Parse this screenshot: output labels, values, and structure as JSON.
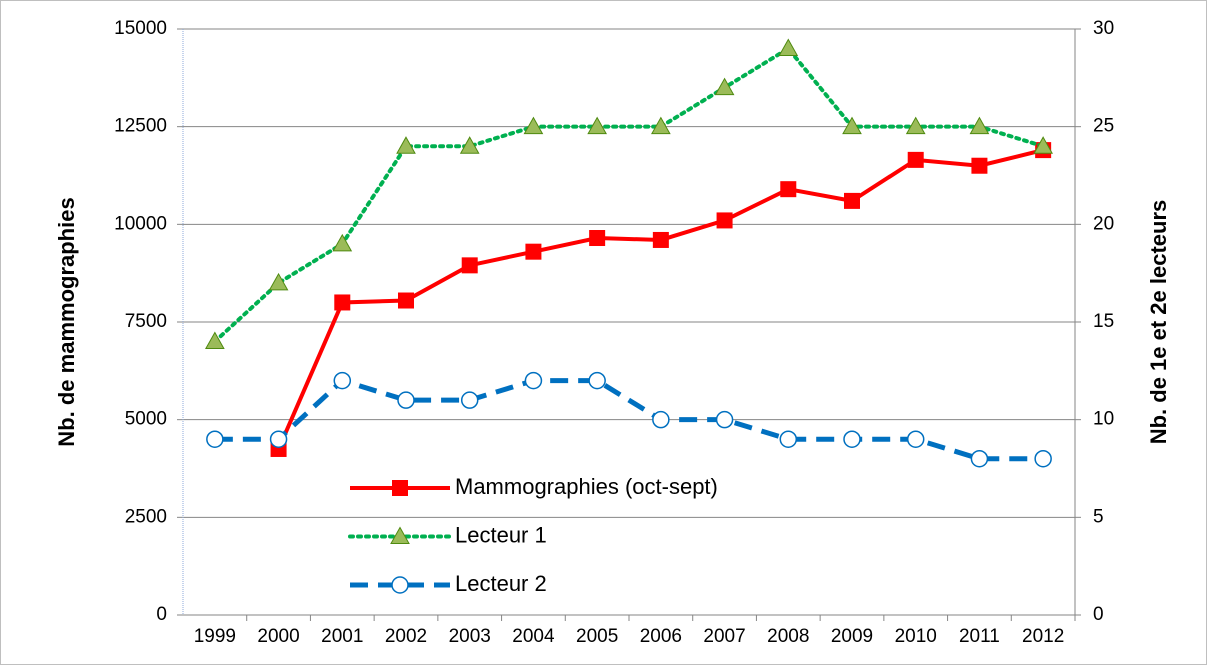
{
  "chart_data": {
    "type": "line",
    "y_label": "Nb. de mammographies",
    "y2_label": "Nb. de 1e et 2e lecteurs",
    "categories": [
      "1999",
      "2000",
      "2001",
      "2002",
      "2003",
      "2004",
      "2005",
      "2006",
      "2007",
      "2008",
      "2009",
      "2010",
      "2011",
      "2012"
    ],
    "series": [
      {
        "name": "Mammographies (oct-sept)",
        "color": "#ff0000",
        "marker": "square",
        "style": "solid",
        "values": [
          null,
          4250,
          8000,
          8050,
          8950,
          9300,
          9650,
          9600,
          10100,
          10900,
          10600,
          11650,
          11500,
          11900
        ]
      },
      {
        "name": "Lecteur 1",
        "color": "#00b050",
        "marker": "triangle",
        "style": "dotted",
        "axis": "y2",
        "values": [
          14,
          17,
          19,
          24,
          24,
          25,
          25,
          25,
          27,
          29,
          25,
          25,
          25,
          24
        ]
      },
      {
        "name": "Lecteur 2",
        "color": "#0070c0",
        "marker": "circle",
        "style": "dashed",
        "axis": "y2",
        "values": [
          9,
          9,
          12,
          11,
          11,
          12,
          12,
          10,
          10,
          9,
          9,
          9,
          8,
          8
        ]
      }
    ],
    "ylim": [
      0,
      15000
    ],
    "yticks": [
      0,
      2500,
      5000,
      7500,
      10000,
      12500,
      15000
    ],
    "y2lim": [
      0,
      30
    ],
    "y2ticks": [
      0,
      5,
      10,
      15,
      20,
      25,
      30
    ],
    "grid": true
  }
}
